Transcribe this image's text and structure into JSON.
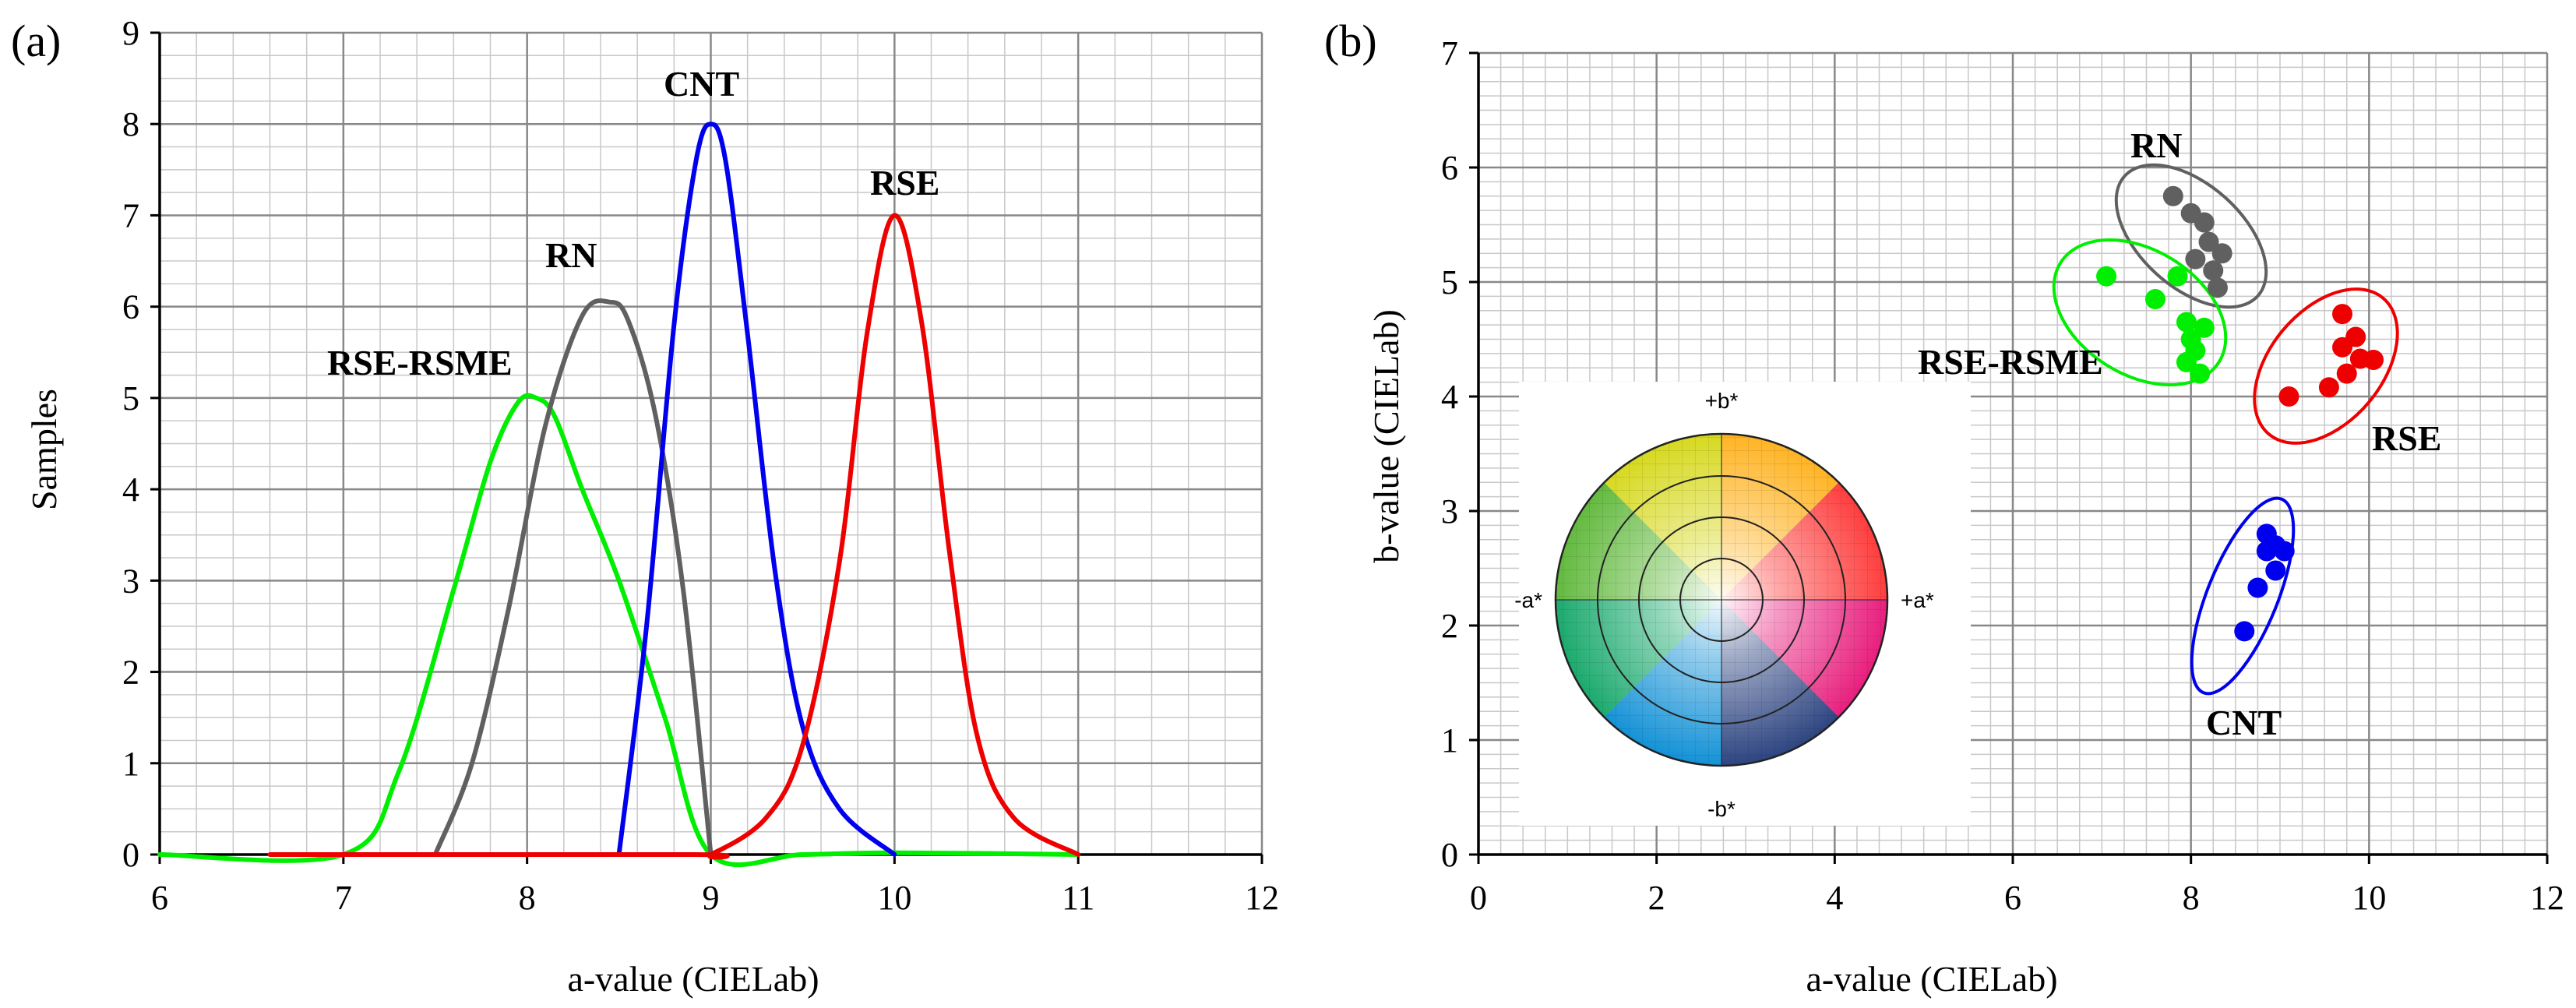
{
  "panels": {
    "a": {
      "label": "(a)"
    },
    "b": {
      "label": "(b)"
    }
  },
  "chart_data": [
    {
      "type": "line",
      "panel": "(a)",
      "xlabel": "a-value (CIELab)",
      "ylabel": "Samples",
      "xlim": [
        6,
        12
      ],
      "ylim": [
        0,
        9
      ],
      "x_ticks": [
        6,
        7,
        8,
        9,
        10,
        11,
        12
      ],
      "y_ticks": [
        0,
        1,
        2,
        3,
        4,
        5,
        6,
        7,
        8,
        9
      ],
      "grid": true,
      "series": [
        {
          "name": "RSE-RSME",
          "color": "#00ee00",
          "x": [
            6,
            7,
            7.3,
            7.6,
            7.8,
            7.95,
            8.05,
            8.15,
            8.3,
            8.5,
            8.75,
            9,
            9.5,
            10,
            11
          ],
          "values": [
            0,
            0,
            0.9,
            2.9,
            4.3,
            4.95,
            5.0,
            4.8,
            4.0,
            3.0,
            1.5,
            0,
            0,
            0.02,
            0
          ]
        },
        {
          "name": "RN",
          "color": "#606060",
          "x": [
            7.5,
            7.7,
            7.9,
            8.1,
            8.3,
            8.45,
            8.55,
            8.7,
            8.85,
            9.0
          ],
          "values": [
            0,
            1.0,
            2.7,
            4.7,
            5.9,
            6.05,
            5.85,
            4.8,
            2.9,
            0
          ]
        },
        {
          "name": "CNT",
          "color": "#0000ee",
          "x": [
            8.5,
            8.65,
            8.8,
            8.92,
            9.0,
            9.08,
            9.2,
            9.35,
            9.5,
            9.7,
            10.0
          ],
          "values": [
            0,
            2.5,
            5.8,
            7.6,
            8.0,
            7.6,
            5.7,
            3.1,
            1.4,
            0.5,
            0
          ]
        },
        {
          "name": "RSE",
          "color": "#ee0000",
          "x": [
            6.6,
            8.9,
            9.0,
            9.3,
            9.5,
            9.7,
            9.85,
            10.0,
            10.15,
            10.3,
            10.45,
            10.65,
            11.0
          ],
          "values": [
            0,
            0,
            0,
            0.4,
            1.2,
            3.2,
            5.7,
            7.0,
            5.8,
            3.3,
            1.3,
            0.4,
            0
          ]
        }
      ],
      "annotations": [
        "RSE-RSME",
        "RN",
        "CNT",
        "RSE"
      ]
    },
    {
      "type": "scatter",
      "panel": "(b)",
      "xlabel": "a-value (CIELab)",
      "ylabel": "b-value (CIELab)",
      "xlim": [
        0,
        12
      ],
      "ylim": [
        0,
        7
      ],
      "x_ticks": [
        0,
        2,
        4,
        6,
        8,
        10,
        12
      ],
      "y_ticks": [
        0,
        1,
        2,
        3,
        4,
        5,
        6,
        7
      ],
      "grid": true,
      "series": [
        {
          "name": "RN",
          "color": "#606060",
          "points": [
            [
              7.8,
              5.75
            ],
            [
              8.0,
              5.6
            ],
            [
              8.15,
              5.52
            ],
            [
              8.2,
              5.35
            ],
            [
              8.35,
              5.25
            ],
            [
              8.05,
              5.2
            ],
            [
              8.25,
              5.1
            ],
            [
              8.3,
              4.95
            ]
          ]
        },
        {
          "name": "RSE-RSME",
          "color": "#00ee00",
          "points": [
            [
              7.05,
              5.05
            ],
            [
              7.85,
              5.05
            ],
            [
              7.6,
              4.85
            ],
            [
              7.95,
              4.65
            ],
            [
              8.15,
              4.6
            ],
            [
              8.0,
              4.5
            ],
            [
              8.05,
              4.4
            ],
            [
              7.95,
              4.3
            ],
            [
              8.1,
              4.2
            ]
          ]
        },
        {
          "name": "RSE",
          "color": "#ee0000",
          "points": [
            [
              9.7,
              4.72
            ],
            [
              9.85,
              4.52
            ],
            [
              9.7,
              4.43
            ],
            [
              9.9,
              4.33
            ],
            [
              10.05,
              4.32
            ],
            [
              9.75,
              4.2
            ],
            [
              9.55,
              4.08
            ],
            [
              9.1,
              4.0
            ]
          ]
        },
        {
          "name": "CNT",
          "color": "#0000ee",
          "points": [
            [
              8.85,
              2.8
            ],
            [
              8.95,
              2.7
            ],
            [
              8.85,
              2.65
            ],
            [
              9.05,
              2.65
            ],
            [
              8.95,
              2.48
            ],
            [
              8.75,
              2.33
            ],
            [
              8.6,
              1.95
            ]
          ]
        }
      ],
      "annotations": [
        "RN",
        "RSE-RSME",
        "RSE",
        "CNT"
      ],
      "inset": {
        "description": "CIELab color wheel",
        "labels": {
          "top": "+b*",
          "bottom": "-b*",
          "left": "-a*",
          "right": "+a*"
        }
      }
    }
  ]
}
